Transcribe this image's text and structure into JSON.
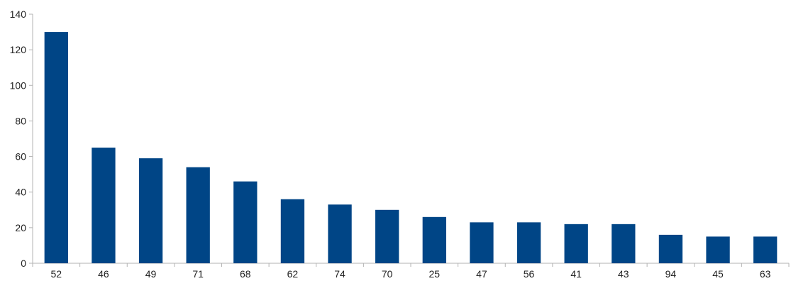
{
  "chart_data": {
    "type": "bar",
    "categories": [
      "52",
      "46",
      "49",
      "71",
      "68",
      "62",
      "74",
      "70",
      "25",
      "47",
      "56",
      "41",
      "43",
      "94",
      "45",
      "63"
    ],
    "values": [
      130,
      65,
      59,
      54,
      46,
      36,
      33,
      30,
      26,
      23,
      23,
      22,
      22,
      16,
      15,
      15
    ],
    "title": "",
    "xlabel": "",
    "ylabel": "",
    "ylim": [
      0,
      140
    ],
    "yticks": [
      0,
      20,
      40,
      60,
      80,
      100,
      120,
      140
    ],
    "grid": false,
    "legend": "none",
    "colors": {
      "bar": "#004586",
      "axis": "#b3b3b3",
      "text": "#222222"
    }
  }
}
